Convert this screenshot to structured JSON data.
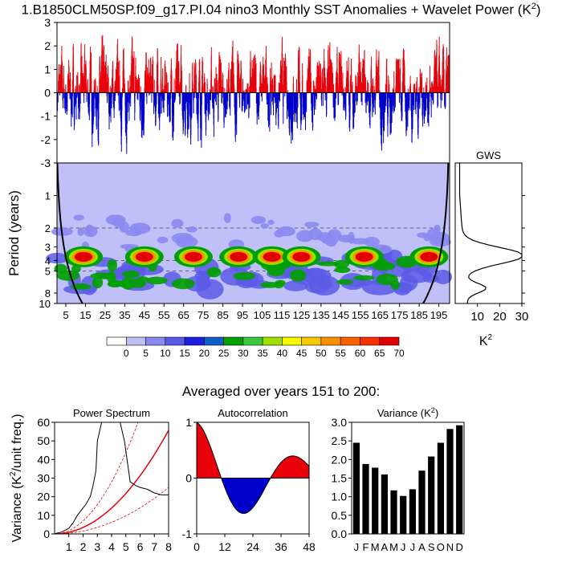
{
  "title": "1.B1850CLM50SP.f09_g17.PI.04 nino3 Monthly SST Anomalies + Wavelet Power (K",
  "title_sup": "2",
  "title_close": ")",
  "subtitle": "Averaged over years 151 to 200:",
  "colors": {
    "positive": "#e8000b",
    "negative": "#0000cc",
    "coi": "#000000"
  },
  "chart_data": [
    {
      "type": "bar",
      "name": "sst-anomalies",
      "ylim": [
        -3,
        3
      ],
      "ytick_labels": [
        "3",
        "2",
        "1",
        "0",
        "-1",
        "-2",
        "-3"
      ],
      "n_years": 200,
      "seed": 7
    },
    {
      "type": "heatmap",
      "name": "wavelet-power",
      "ylabel": "Period (years)",
      "ytick_labels": [
        "1",
        "2",
        "3",
        "4",
        "5",
        "8",
        "10"
      ],
      "xtick_labels": [
        "5",
        "15",
        "25",
        "35",
        "45",
        "55",
        "65",
        "75",
        "85",
        "95",
        "105",
        "115",
        "125",
        "135",
        "145",
        "155",
        "165",
        "175",
        "185",
        "195"
      ],
      "colorbar_labels": [
        "0",
        "5",
        "10",
        "15",
        "20",
        "25",
        "30",
        "35",
        "40",
        "45",
        "50",
        "55",
        "60",
        "65",
        "70"
      ],
      "colorbar_colors": [
        "#ffffff",
        "#c0c0f8",
        "#8a8af0",
        "#5a5ae8",
        "#1e1ee0",
        "#1060c8",
        "#00a000",
        "#3cc83c",
        "#a0e000",
        "#f8f800",
        "#f8c800",
        "#f89000",
        "#f86000",
        "#f83000",
        "#e00000"
      ],
      "hotspots_years": [
        14,
        45,
        70,
        93,
        110,
        125,
        157,
        190
      ]
    },
    {
      "type": "line",
      "name": "gws",
      "title": "GWS",
      "xlabel": "K",
      "xlabel_sup": "2",
      "xtick_labels": [
        "10",
        "20",
        "30"
      ],
      "xlim": [
        0,
        30
      ]
    },
    {
      "type": "line",
      "name": "power-spectrum",
      "title": "Power Spectrum",
      "ylabel": "Variance (K",
      "ylabel_sup": "2",
      "ylabel_close": "/unit freq.)",
      "xlim": [
        0,
        8
      ],
      "ylim": [
        0,
        60
      ],
      "xtick_labels": [
        "1",
        "2",
        "3",
        "4",
        "5",
        "6",
        "7",
        "8"
      ],
      "ytick_labels": [
        "0",
        "10",
        "20",
        "30",
        "40",
        "50",
        "60"
      ],
      "x": [
        0.05,
        0.5,
        1,
        1.3,
        1.6,
        1.8,
        2.0,
        2.2,
        2.5,
        2.7,
        2.9,
        3.0,
        3.3,
        4.6,
        4.9,
        5.3,
        5.7,
        6.0,
        6.5,
        7.0,
        7.5,
        8.0
      ],
      "y": [
        0.2,
        1,
        3,
        6,
        10,
        12,
        14,
        16,
        20,
        26,
        34,
        50,
        60,
        60,
        50,
        28,
        26,
        25,
        24,
        22,
        21,
        21
      ]
    },
    {
      "type": "area",
      "name": "autocorrelation",
      "title": "Autocorrelation",
      "xlim": [
        0,
        48
      ],
      "ylim": [
        -1,
        1
      ],
      "xtick_labels": [
        "0",
        "12",
        "24",
        "36",
        "48"
      ],
      "ytick_labels": [
        "1",
        "0",
        "-1"
      ]
    },
    {
      "type": "bar",
      "name": "variance",
      "title": "Variance (K",
      "title_sup": "2",
      "title_close": ")",
      "categories": [
        "J",
        "F",
        "M",
        "A",
        "M",
        "J",
        "J",
        "A",
        "S",
        "O",
        "N",
        "D"
      ],
      "values": [
        2.45,
        1.88,
        1.78,
        1.6,
        1.17,
        1.02,
        1.2,
        1.7,
        2.08,
        2.45,
        2.82,
        2.92
      ],
      "ylim": [
        0,
        3
      ],
      "ytick_labels": [
        "0.0",
        "0.5",
        "1.0",
        "1.5",
        "2.0",
        "2.5",
        "3.0"
      ]
    }
  ]
}
